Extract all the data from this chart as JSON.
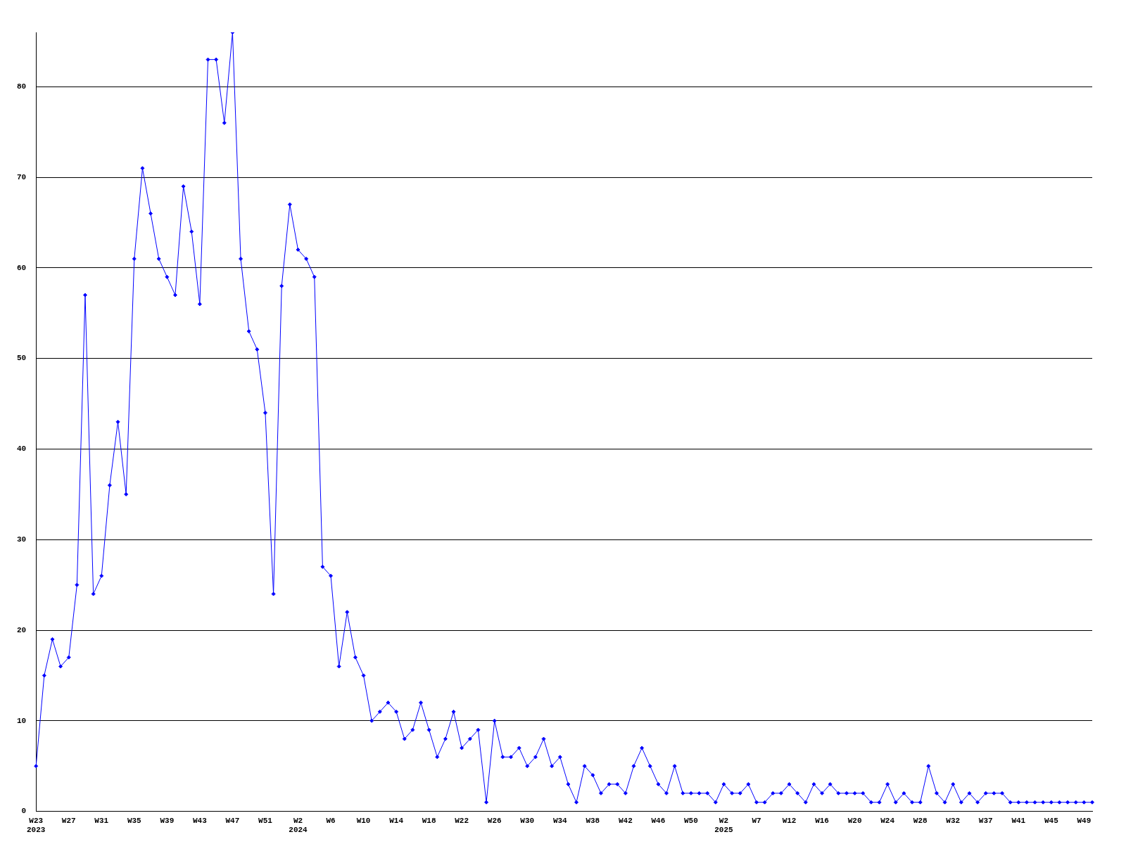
{
  "chart_data": {
    "type": "line",
    "categories": [
      "W23\n2023",
      null,
      null,
      null,
      "W27",
      null,
      null,
      null,
      "W31",
      null,
      null,
      null,
      "W35",
      null,
      null,
      null,
      "W39",
      null,
      null,
      null,
      "W43",
      null,
      null,
      null,
      "W47",
      null,
      null,
      null,
      "W51",
      null,
      null,
      null,
      "W2\n2024",
      null,
      null,
      null,
      "W6",
      null,
      null,
      null,
      "W10",
      null,
      null,
      null,
      "W14",
      null,
      null,
      null,
      "W18",
      null,
      null,
      null,
      "W22",
      null,
      null,
      null,
      "W26",
      null,
      null,
      null,
      "W30",
      null,
      null,
      null,
      "W34",
      null,
      null,
      null,
      "W38",
      null,
      null,
      null,
      "W42",
      null,
      null,
      null,
      "W46",
      null,
      null,
      null,
      "W50",
      null,
      null,
      null,
      "W2\n2025",
      null,
      null,
      null,
      "W7",
      null,
      null,
      null,
      "W12",
      null,
      null,
      null,
      "W16",
      null,
      null,
      null,
      "W20",
      null,
      null,
      null,
      "W24",
      null,
      null,
      null,
      "W28",
      null,
      null,
      null,
      "W32",
      null,
      null,
      null,
      "W37",
      null,
      null,
      null,
      "W41",
      null,
      null,
      null,
      "W45",
      null,
      null,
      null,
      "W49",
      null
    ],
    "series": [
      {
        "color": "#0000ff",
        "values": [
          5,
          15,
          19,
          16,
          17,
          25,
          57,
          24,
          26,
          36,
          43,
          35,
          61,
          71,
          66,
          61,
          59,
          57,
          69,
          64,
          56,
          83,
          83,
          76,
          86,
          61,
          53,
          51,
          44,
          24,
          58,
          67,
          62,
          61,
          59,
          27,
          26,
          16,
          22,
          17,
          15,
          10,
          11,
          12,
          11,
          8,
          9,
          12,
          9,
          6,
          8,
          11,
          7,
          8,
          9,
          1,
          10,
          6,
          6,
          7,
          5,
          6,
          8,
          5,
          6,
          3,
          1,
          5,
          4,
          2,
          3,
          3,
          2,
          5,
          7,
          5,
          3,
          2,
          5,
          2,
          2,
          2,
          2,
          1,
          3,
          2,
          2,
          3,
          1,
          1,
          2,
          2,
          3,
          2,
          1,
          3,
          2,
          3,
          2,
          2,
          2,
          2,
          1,
          1,
          3,
          1,
          2,
          1,
          1,
          5,
          2,
          1,
          3,
          1,
          2,
          1,
          2,
          2,
          2,
          1,
          1,
          1,
          1,
          1,
          1,
          1,
          1,
          1,
          1,
          1
        ]
      }
    ],
    "ylim": [
      0,
      86
    ],
    "yticks": [
      0,
      10,
      20,
      30,
      40,
      50,
      60,
      70,
      80
    ],
    "grid": "y",
    "legend": false,
    "marker": "diamond"
  }
}
